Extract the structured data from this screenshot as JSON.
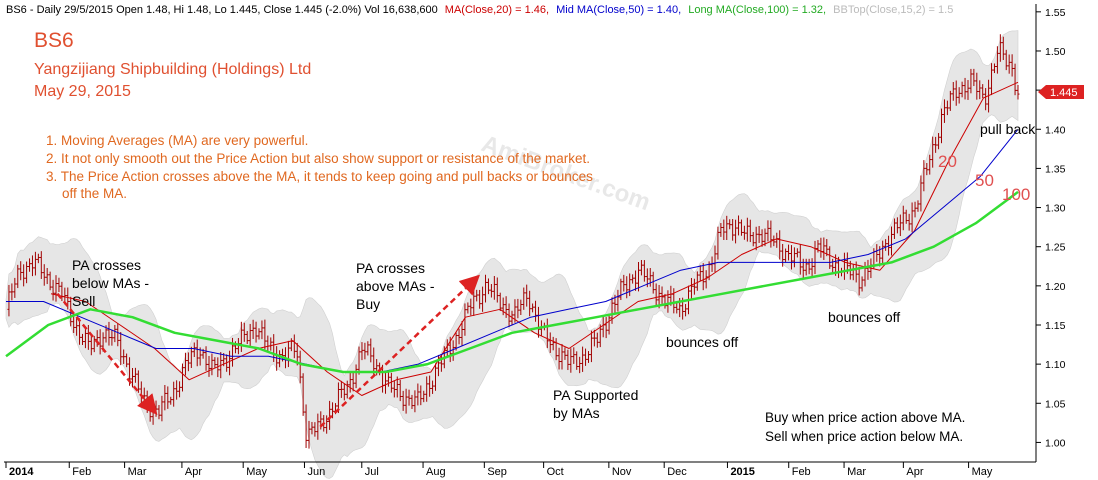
{
  "header": {
    "symbol_line": "BS6 - Daily 29/5/2015 Open 1.48, Hi 1.48, Lo 1.445, Close 1.445 (-2.0%) Vol 16,638,600",
    "ma20_text": "MA(Close,20) = 1.46,",
    "ma50_text": "Mid MA(Close,50) = 1.40,",
    "ma100_text": "Long MA(Close,100) = 1.32,",
    "bb_text": "BBTop(Close,15,2) = 1.5"
  },
  "title": {
    "ticker": "BS6",
    "company": "Yangzijiang Shipbuilding (Holdings) Ltd",
    "date": "May 29, 2015"
  },
  "notes": [
    "1. Moving Averages (MA) are very powerful.",
    "2. It not only smooth out the Price Action but also show support or resistance of the market.",
    "3. The Price Action crosses above the MA, it tends to keep going and pull backs or bounces",
    "off the MA."
  ],
  "watermark": "AmiBroker.com",
  "annotations": {
    "cross_below": [
      "PA crosses",
      "below MAs -",
      "Sell"
    ],
    "cross_above": [
      "PA crosses",
      "above MAs -",
      "Buy"
    ],
    "supported": [
      "PA Supported",
      "by MAs"
    ],
    "bounces_dec": "bounces off",
    "bounces_mar": "bounces off",
    "pull_back": "pull back",
    "rule": [
      "Buy when price action above MA.",
      "Sell when price action below MA."
    ],
    "ma20": "20",
    "ma50": "50",
    "ma100": "100"
  },
  "colors": {
    "price": "#a00000",
    "ma20": "#cc0000",
    "ma50": "#0000cc",
    "ma100": "#33dd33",
    "bb_fill": "#e6e6e6",
    "note_text": "#e06820",
    "title_text": "#e05030",
    "label_text": "#e05050",
    "badge": "#dd2222"
  },
  "chart_data": {
    "type": "ohlc",
    "title": "BS6",
    "x_labels": [
      "2014",
      "Feb",
      "Mar",
      "Apr",
      "May",
      "Jun",
      "Jul",
      "Aug",
      "Sep",
      "Oct",
      "Nov",
      "Dec",
      "2015",
      "Feb",
      "Mar",
      "Apr",
      "May"
    ],
    "y_ticks": [
      "1.00",
      "1.05",
      "1.10",
      "1.15",
      "1.20",
      "1.25",
      "1.30",
      "1.35",
      "1.40",
      "1.45",
      "1.50",
      "1.55"
    ],
    "ylim": [
      0.975,
      1.56
    ],
    "last_close": "1.445",
    "grid": false,
    "price_path_weekly": [
      {
        "date": "2014-01-02",
        "close": 1.17
      },
      {
        "date": "2014-01-09",
        "close": 1.22
      },
      {
        "date": "2014-01-16",
        "close": 1.23
      },
      {
        "date": "2014-01-23",
        "close": 1.21
      },
      {
        "date": "2014-01-30",
        "close": 1.19
      },
      {
        "date": "2014-02-06",
        "close": 1.15
      },
      {
        "date": "2014-02-13",
        "close": 1.12
      },
      {
        "date": "2014-02-20",
        "close": 1.14
      },
      {
        "date": "2014-02-27",
        "close": 1.13
      },
      {
        "date": "2014-03-06",
        "close": 1.09
      },
      {
        "date": "2014-03-13",
        "close": 1.05
      },
      {
        "date": "2014-03-20",
        "close": 1.04
      },
      {
        "date": "2014-03-27",
        "close": 1.06
      },
      {
        "date": "2014-04-03",
        "close": 1.1
      },
      {
        "date": "2014-04-10",
        "close": 1.12
      },
      {
        "date": "2014-04-17",
        "close": 1.09
      },
      {
        "date": "2014-04-24",
        "close": 1.11
      },
      {
        "date": "2014-05-01",
        "close": 1.13
      },
      {
        "date": "2014-05-08",
        "close": 1.15
      },
      {
        "date": "2014-05-15",
        "close": 1.12
      },
      {
        "date": "2014-05-22",
        "close": 1.11
      },
      {
        "date": "2014-05-29",
        "close": 1.12
      },
      {
        "date": "2014-06-03",
        "close": 1.01
      },
      {
        "date": "2014-06-10",
        "close": 1.02
      },
      {
        "date": "2014-06-17",
        "close": 1.05
      },
      {
        "date": "2014-06-24",
        "close": 1.07
      },
      {
        "date": "2014-07-01",
        "close": 1.12
      },
      {
        "date": "2014-07-08",
        "close": 1.1
      },
      {
        "date": "2014-07-15",
        "close": 1.07
      },
      {
        "date": "2014-07-22",
        "close": 1.06
      },
      {
        "date": "2014-07-29",
        "close": 1.05
      },
      {
        "date": "2014-08-05",
        "close": 1.08
      },
      {
        "date": "2014-08-12",
        "close": 1.11
      },
      {
        "date": "2014-08-19",
        "close": 1.14
      },
      {
        "date": "2014-08-26",
        "close": 1.18
      },
      {
        "date": "2014-09-02",
        "close": 1.2
      },
      {
        "date": "2014-09-09",
        "close": 1.18
      },
      {
        "date": "2014-09-16",
        "close": 1.16
      },
      {
        "date": "2014-09-23",
        "close": 1.19
      },
      {
        "date": "2014-09-30",
        "close": 1.14
      },
      {
        "date": "2014-10-07",
        "close": 1.12
      },
      {
        "date": "2014-10-14",
        "close": 1.1
      },
      {
        "date": "2014-10-21",
        "close": 1.11
      },
      {
        "date": "2014-10-28",
        "close": 1.13
      },
      {
        "date": "2014-11-04",
        "close": 1.17
      },
      {
        "date": "2014-11-11",
        "close": 1.2
      },
      {
        "date": "2014-11-18",
        "close": 1.22
      },
      {
        "date": "2014-11-25",
        "close": 1.2
      },
      {
        "date": "2014-12-02",
        "close": 1.18
      },
      {
        "date": "2014-12-09",
        "close": 1.17
      },
      {
        "date": "2014-12-16",
        "close": 1.2
      },
      {
        "date": "2014-12-23",
        "close": 1.22
      },
      {
        "date": "2014-12-30",
        "close": 1.27
      },
      {
        "date": "2015-01-06",
        "close": 1.28
      },
      {
        "date": "2015-01-13",
        "close": 1.26
      },
      {
        "date": "2015-01-20",
        "close": 1.27
      },
      {
        "date": "2015-01-27",
        "close": 1.25
      },
      {
        "date": "2015-02-03",
        "close": 1.24
      },
      {
        "date": "2015-02-10",
        "close": 1.22
      },
      {
        "date": "2015-02-17",
        "close": 1.25
      },
      {
        "date": "2015-02-24",
        "close": 1.23
      },
      {
        "date": "2015-03-03",
        "close": 1.22
      },
      {
        "date": "2015-03-10",
        "close": 1.21
      },
      {
        "date": "2015-03-17",
        "close": 1.23
      },
      {
        "date": "2015-03-24",
        "close": 1.26
      },
      {
        "date": "2015-03-31",
        "close": 1.28
      },
      {
        "date": "2015-04-07",
        "close": 1.3
      },
      {
        "date": "2015-04-14",
        "close": 1.36
      },
      {
        "date": "2015-04-21",
        "close": 1.42
      },
      {
        "date": "2015-04-28",
        "close": 1.45
      },
      {
        "date": "2015-05-05",
        "close": 1.46
      },
      {
        "date": "2015-05-12",
        "close": 1.44
      },
      {
        "date": "2015-05-19",
        "close": 1.5
      },
      {
        "date": "2015-05-26",
        "close": 1.48
      },
      {
        "date": "2015-05-29",
        "close": 1.445
      }
    ],
    "series": [
      {
        "name": "MA(Close,20)",
        "last": 1.46,
        "values": [
          1.19,
          1.18,
          1.15,
          1.12,
          1.08,
          1.1,
          1.12,
          1.13,
          1.09,
          1.06,
          1.08,
          1.09,
          1.16,
          1.17,
          1.14,
          1.12,
          1.15,
          1.18,
          1.19,
          1.21,
          1.24,
          1.26,
          1.25,
          1.23,
          1.22,
          1.27,
          1.36,
          1.44,
          1.46
        ]
      },
      {
        "name": "Mid MA(Close,50)",
        "last": 1.4,
        "values": [
          1.18,
          1.18,
          1.16,
          1.14,
          1.12,
          1.12,
          1.11,
          1.11,
          1.1,
          1.09,
          1.09,
          1.1,
          1.12,
          1.14,
          1.16,
          1.17,
          1.18,
          1.2,
          1.22,
          1.23,
          1.23,
          1.23,
          1.23,
          1.24,
          1.26,
          1.3,
          1.34,
          1.4
        ]
      },
      {
        "name": "Long MA(Close,100)",
        "last": 1.32,
        "values": [
          1.11,
          1.15,
          1.17,
          1.16,
          1.14,
          1.13,
          1.12,
          1.1,
          1.09,
          1.09,
          1.1,
          1.12,
          1.14,
          1.15,
          1.16,
          1.17,
          1.18,
          1.19,
          1.2,
          1.21,
          1.22,
          1.23,
          1.25,
          1.28,
          1.32
        ]
      },
      {
        "name": "BBTop(Close,15,2)",
        "last": 1.5,
        "values": []
      }
    ]
  }
}
